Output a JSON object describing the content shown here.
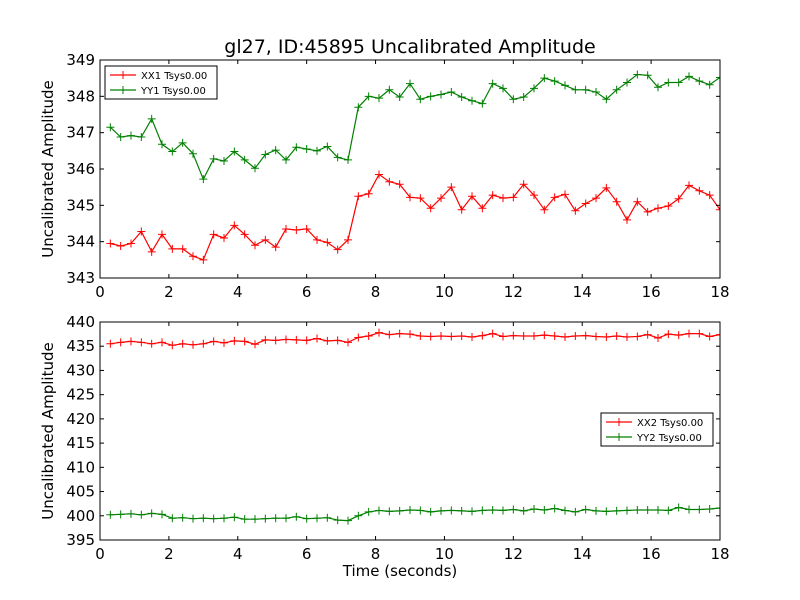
{
  "figure": {
    "title": "gl27, ID:45895 Uncalibrated Amplitude"
  },
  "chart_data": [
    {
      "type": "line",
      "title": "gl27, ID:45895 Uncalibrated Amplitude",
      "xlabel": "",
      "ylabel": "Uncalibrated Amplitude",
      "xlim": [
        0,
        18
      ],
      "ylim": [
        343,
        349
      ],
      "xticks": [
        "0",
        "2",
        "4",
        "6",
        "8",
        "10",
        "12",
        "14",
        "16",
        "18"
      ],
      "yticks": [
        "343",
        "344",
        "345",
        "346",
        "347",
        "348",
        "349"
      ],
      "grid": false,
      "legend_position": "top-left",
      "x": [
        0.3,
        0.6,
        0.9,
        1.2,
        1.5,
        1.8,
        2.1,
        2.4,
        2.7,
        3.0,
        3.3,
        3.6,
        3.9,
        4.2,
        4.5,
        4.8,
        5.1,
        5.4,
        5.7,
        6.0,
        6.3,
        6.6,
        6.9,
        7.2,
        7.5,
        7.8,
        8.1,
        8.4,
        8.7,
        9.0,
        9.3,
        9.6,
        9.9,
        10.2,
        10.5,
        10.8,
        11.1,
        11.4,
        11.7,
        12.0,
        12.3,
        12.6,
        12.9,
        13.2,
        13.5,
        13.8,
        14.1,
        14.4,
        14.7,
        15.0,
        15.3,
        15.6,
        15.9,
        16.2,
        16.5,
        16.8,
        17.1,
        17.4,
        17.7,
        18.0
      ],
      "series": [
        {
          "name": "XX1 Tsys0.00",
          "color": "#ff0000",
          "values": [
            343.95,
            343.88,
            343.95,
            344.28,
            343.72,
            344.2,
            343.8,
            343.8,
            343.6,
            343.5,
            344.2,
            344.1,
            344.45,
            344.2,
            343.9,
            344.05,
            343.85,
            344.35,
            344.32,
            344.35,
            344.05,
            343.98,
            343.78,
            344.05,
            345.25,
            345.32,
            345.85,
            345.65,
            345.58,
            345.22,
            345.2,
            344.92,
            345.2,
            345.5,
            344.88,
            345.25,
            344.92,
            345.28,
            345.2,
            345.22,
            345.58,
            345.28,
            344.88,
            345.22,
            345.3,
            344.85,
            345.05,
            345.2,
            345.48,
            345.1,
            344.6,
            345.1,
            344.82,
            344.92,
            344.98,
            345.18,
            345.55,
            345.4,
            345.28,
            344.88
          ]
        },
        {
          "name": "YY1 Tsys0.00",
          "color": "#008000",
          "values": [
            347.15,
            346.88,
            346.92,
            346.88,
            347.38,
            346.68,
            346.48,
            346.72,
            346.42,
            345.72,
            346.28,
            346.22,
            346.48,
            346.25,
            346.02,
            346.4,
            346.52,
            346.25,
            346.6,
            346.55,
            346.5,
            346.62,
            346.32,
            346.25,
            347.7,
            348.0,
            347.95,
            348.18,
            347.98,
            348.35,
            347.92,
            348.0,
            348.05,
            348.12,
            347.98,
            347.88,
            347.8,
            348.35,
            348.22,
            347.92,
            347.98,
            348.22,
            348.5,
            348.42,
            348.3,
            348.18,
            348.18,
            348.12,
            347.92,
            348.18,
            348.38,
            348.6,
            348.58,
            348.25,
            348.38,
            348.38,
            348.55,
            348.42,
            348.32,
            348.52
          ]
        }
      ]
    },
    {
      "type": "line",
      "title": "",
      "xlabel": "Time (seconds)",
      "ylabel": "Uncalibrated Amplitude",
      "xlim": [
        0,
        18
      ],
      "ylim": [
        395,
        440
      ],
      "xticks": [
        "0",
        "2",
        "4",
        "6",
        "8",
        "10",
        "12",
        "14",
        "16",
        "18"
      ],
      "yticks": [
        "395",
        "400",
        "405",
        "410",
        "415",
        "420",
        "425",
        "430",
        "435",
        "440"
      ],
      "grid": false,
      "legend_position": "center-right",
      "x": [
        0.3,
        0.6,
        0.9,
        1.2,
        1.5,
        1.8,
        2.1,
        2.4,
        2.7,
        3.0,
        3.3,
        3.6,
        3.9,
        4.2,
        4.5,
        4.8,
        5.1,
        5.4,
        5.7,
        6.0,
        6.3,
        6.6,
        6.9,
        7.2,
        7.5,
        7.8,
        8.1,
        8.4,
        8.7,
        9.0,
        9.3,
        9.6,
        9.9,
        10.2,
        10.5,
        10.8,
        11.1,
        11.4,
        11.7,
        12.0,
        12.3,
        12.6,
        12.9,
        13.2,
        13.5,
        13.8,
        14.1,
        14.4,
        14.7,
        15.0,
        15.3,
        15.6,
        15.9,
        16.2,
        16.5,
        16.8,
        17.1,
        17.4,
        17.7,
        18.0
      ],
      "series": [
        {
          "name": "XX2 Tsys0.00",
          "color": "#ff0000",
          "values": [
            435.5,
            435.8,
            436.0,
            435.8,
            435.5,
            435.8,
            435.2,
            435.5,
            435.3,
            435.5,
            436.0,
            435.7,
            436.1,
            436.0,
            435.4,
            436.3,
            436.2,
            436.4,
            436.3,
            436.2,
            436.6,
            436.1,
            436.2,
            435.8,
            436.8,
            437.1,
            437.8,
            437.4,
            437.6,
            437.5,
            437.1,
            437.0,
            437.1,
            437.0,
            437.1,
            436.9,
            437.2,
            437.6,
            437.0,
            437.2,
            437.1,
            437.1,
            437.3,
            437.1,
            436.9,
            437.1,
            437.2,
            437.0,
            436.9,
            437.1,
            436.9,
            437.0,
            437.4,
            436.7,
            437.5,
            437.3,
            437.6,
            437.6,
            437.0,
            437.4
          ]
        },
        {
          "name": "YY2 Tsys0.00",
          "color": "#008000",
          "values": [
            400.2,
            400.3,
            400.4,
            400.2,
            400.5,
            400.3,
            399.5,
            399.6,
            399.4,
            399.5,
            399.4,
            399.5,
            399.7,
            399.3,
            399.3,
            399.4,
            399.5,
            399.5,
            399.8,
            399.4,
            399.5,
            399.6,
            399.1,
            399.0,
            400.0,
            400.8,
            401.1,
            400.9,
            401.0,
            401.2,
            401.1,
            400.8,
            401.0,
            401.1,
            401.0,
            400.9,
            401.1,
            401.2,
            401.1,
            401.3,
            401.0,
            401.4,
            401.2,
            401.5,
            401.1,
            400.8,
            401.3,
            401.0,
            400.9,
            401.0,
            401.1,
            401.2,
            401.2,
            401.2,
            401.1,
            401.7,
            401.3,
            401.3,
            401.4,
            401.6
          ]
        }
      ]
    }
  ]
}
